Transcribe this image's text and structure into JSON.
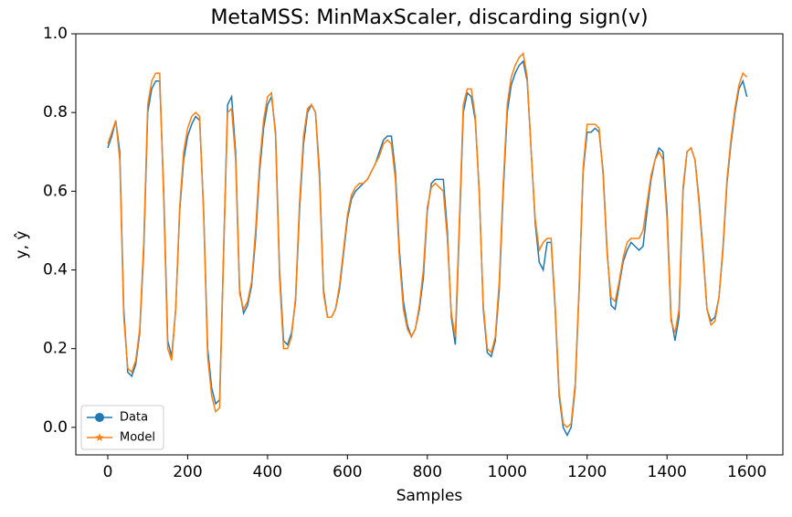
{
  "chart_data": {
    "type": "line",
    "title": "MetaMSS: MinMaxScaler, discarding sign(v)",
    "x_label": "Samples",
    "y_label": "y, ŷ",
    "x": [
      0,
      10,
      20,
      30,
      40,
      50,
      60,
      70,
      80,
      90,
      100,
      110,
      120,
      130,
      140,
      150,
      160,
      170,
      180,
      190,
      200,
      210,
      220,
      230,
      240,
      250,
      260,
      270,
      280,
      290,
      300,
      310,
      320,
      330,
      340,
      350,
      360,
      370,
      380,
      390,
      400,
      410,
      420,
      430,
      440,
      450,
      460,
      470,
      480,
      490,
      500,
      510,
      520,
      530,
      540,
      550,
      560,
      570,
      580,
      590,
      600,
      610,
      620,
      630,
      640,
      650,
      660,
      670,
      680,
      690,
      700,
      710,
      720,
      730,
      740,
      750,
      760,
      770,
      780,
      790,
      800,
      810,
      820,
      830,
      840,
      850,
      860,
      870,
      880,
      890,
      900,
      910,
      920,
      930,
      940,
      950,
      960,
      970,
      980,
      990,
      1000,
      1010,
      1020,
      1030,
      1040,
      1050,
      1060,
      1070,
      1080,
      1090,
      1100,
      1110,
      1120,
      1130,
      1140,
      1150,
      1160,
      1170,
      1180,
      1190,
      1200,
      1210,
      1220,
      1230,
      1240,
      1250,
      1260,
      1270,
      1280,
      1290,
      1300,
      1310,
      1320,
      1330,
      1340,
      1350,
      1360,
      1370,
      1380,
      1390,
      1400,
      1410,
      1420,
      1430,
      1440,
      1450,
      1460,
      1470,
      1480,
      1490,
      1500,
      1510,
      1520,
      1530,
      1540,
      1550,
      1560,
      1570,
      1580,
      1590,
      1600
    ],
    "series": [
      {
        "name": "Data",
        "color": "#1f77b4",
        "marker": "circle",
        "values": [
          0.71,
          0.74,
          0.78,
          0.7,
          0.3,
          0.14,
          0.13,
          0.16,
          0.24,
          0.45,
          0.8,
          0.86,
          0.88,
          0.88,
          0.6,
          0.22,
          0.18,
          0.3,
          0.55,
          0.68,
          0.74,
          0.77,
          0.79,
          0.78,
          0.55,
          0.2,
          0.1,
          0.06,
          0.07,
          0.45,
          0.82,
          0.84,
          0.7,
          0.35,
          0.29,
          0.31,
          0.36,
          0.48,
          0.65,
          0.76,
          0.82,
          0.84,
          0.75,
          0.4,
          0.22,
          0.21,
          0.24,
          0.32,
          0.55,
          0.72,
          0.8,
          0.82,
          0.8,
          0.65,
          0.35,
          0.28,
          0.28,
          0.3,
          0.35,
          0.44,
          0.53,
          0.58,
          0.6,
          0.61,
          0.62,
          0.63,
          0.65,
          0.67,
          0.7,
          0.73,
          0.74,
          0.74,
          0.65,
          0.45,
          0.32,
          0.26,
          0.23,
          0.25,
          0.3,
          0.38,
          0.55,
          0.62,
          0.63,
          0.63,
          0.63,
          0.5,
          0.28,
          0.21,
          0.5,
          0.8,
          0.85,
          0.84,
          0.78,
          0.6,
          0.3,
          0.19,
          0.18,
          0.22,
          0.35,
          0.6,
          0.8,
          0.87,
          0.9,
          0.92,
          0.93,
          0.88,
          0.7,
          0.52,
          0.42,
          0.4,
          0.47,
          0.47,
          0.3,
          0.08,
          0.0,
          -0.02,
          0.0,
          0.1,
          0.35,
          0.65,
          0.75,
          0.75,
          0.76,
          0.75,
          0.65,
          0.45,
          0.31,
          0.3,
          0.36,
          0.42,
          0.45,
          0.47,
          0.46,
          0.45,
          0.46,
          0.55,
          0.63,
          0.68,
          0.71,
          0.7,
          0.55,
          0.28,
          0.22,
          0.28,
          0.6,
          0.7,
          0.71,
          0.68,
          0.58,
          0.45,
          0.3,
          0.27,
          0.28,
          0.33,
          0.45,
          0.62,
          0.72,
          0.8,
          0.86,
          0.88,
          0.84
        ]
      },
      {
        "name": "Model",
        "color": "#ff7f0e",
        "marker": "star",
        "values": [
          0.72,
          0.75,
          0.78,
          0.68,
          0.28,
          0.15,
          0.14,
          0.17,
          0.25,
          0.47,
          0.82,
          0.88,
          0.9,
          0.9,
          0.58,
          0.2,
          0.17,
          0.3,
          0.56,
          0.7,
          0.76,
          0.79,
          0.8,
          0.79,
          0.54,
          0.18,
          0.08,
          0.04,
          0.05,
          0.44,
          0.8,
          0.81,
          0.68,
          0.34,
          0.3,
          0.32,
          0.37,
          0.5,
          0.67,
          0.78,
          0.84,
          0.85,
          0.74,
          0.38,
          0.2,
          0.2,
          0.23,
          0.33,
          0.57,
          0.74,
          0.81,
          0.82,
          0.8,
          0.63,
          0.34,
          0.28,
          0.28,
          0.3,
          0.36,
          0.45,
          0.54,
          0.59,
          0.61,
          0.62,
          0.62,
          0.63,
          0.65,
          0.67,
          0.69,
          0.72,
          0.73,
          0.72,
          0.63,
          0.43,
          0.3,
          0.25,
          0.23,
          0.25,
          0.31,
          0.4,
          0.56,
          0.61,
          0.62,
          0.61,
          0.6,
          0.48,
          0.29,
          0.23,
          0.52,
          0.82,
          0.86,
          0.86,
          0.79,
          0.59,
          0.31,
          0.2,
          0.19,
          0.23,
          0.37,
          0.62,
          0.82,
          0.89,
          0.92,
          0.94,
          0.95,
          0.89,
          0.7,
          0.53,
          0.45,
          0.47,
          0.48,
          0.48,
          0.31,
          0.09,
          0.01,
          0.0,
          0.01,
          0.11,
          0.36,
          0.66,
          0.77,
          0.77,
          0.77,
          0.76,
          0.64,
          0.44,
          0.33,
          0.32,
          0.37,
          0.43,
          0.47,
          0.48,
          0.48,
          0.48,
          0.5,
          0.57,
          0.64,
          0.68,
          0.7,
          0.68,
          0.53,
          0.27,
          0.24,
          0.3,
          0.61,
          0.7,
          0.71,
          0.68,
          0.57,
          0.44,
          0.3,
          0.26,
          0.27,
          0.33,
          0.46,
          0.63,
          0.73,
          0.81,
          0.87,
          0.9,
          0.89
        ]
      }
    ],
    "xlim": [
      -80,
      1690
    ],
    "ylim": [
      -0.07,
      1.0
    ],
    "xticks": [
      0,
      200,
      400,
      600,
      800,
      1000,
      1200,
      1400,
      1600
    ],
    "yticks": [
      {
        "value": 0,
        "label": "0.0"
      },
      0.2,
      0.4,
      0.6,
      0.8,
      {
        "value": 1,
        "label": "1.0"
      }
    ],
    "legend": "lower left"
  }
}
